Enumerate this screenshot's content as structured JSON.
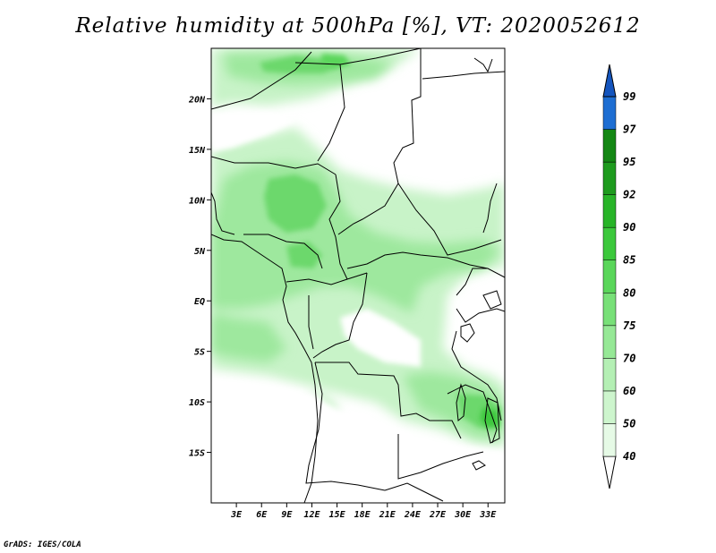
{
  "title": "Relative humidity at 500hPa [%], VT: 2020052612",
  "credit": "GrADS: IGES/COLA",
  "map": {
    "region": "Central Africa",
    "lon_range": [
      0,
      35
    ],
    "lat_range": [
      -20,
      25
    ],
    "lat_ticks": [
      {
        "value": 20,
        "label": "20N"
      },
      {
        "value": 15,
        "label": "15N"
      },
      {
        "value": 10,
        "label": "10N"
      },
      {
        "value": 5,
        "label": "5N"
      },
      {
        "value": 0,
        "label": "EQ"
      },
      {
        "value": -5,
        "label": "5S"
      },
      {
        "value": -10,
        "label": "10S"
      },
      {
        "value": -15,
        "label": "15S"
      }
    ],
    "lon_ticks": [
      {
        "value": 3,
        "label": "3E"
      },
      {
        "value": 6,
        "label": "6E"
      },
      {
        "value": 9,
        "label": "9E"
      },
      {
        "value": 12,
        "label": "12E"
      },
      {
        "value": 15,
        "label": "15E"
      },
      {
        "value": 18,
        "label": "18E"
      },
      {
        "value": 21,
        "label": "21E"
      },
      {
        "value": 24,
        "label": "24E"
      },
      {
        "value": 27,
        "label": "27E"
      },
      {
        "value": 30,
        "label": "30E"
      },
      {
        "value": 33,
        "label": "33E"
      }
    ]
  },
  "colorbar": {
    "levels": [
      {
        "label": "40",
        "color": "#e6fae6"
      },
      {
        "label": "50",
        "color": "#cdf5cd"
      },
      {
        "label": "60",
        "color": "#b4efb4"
      },
      {
        "label": "70",
        "color": "#96e896"
      },
      {
        "label": "75",
        "color": "#78e078"
      },
      {
        "label": "80",
        "color": "#5ad65a"
      },
      {
        "label": "85",
        "color": "#3cc83c"
      },
      {
        "label": "90",
        "color": "#28b428"
      },
      {
        "label": "92",
        "color": "#1e9b1e"
      },
      {
        "label": "95",
        "color": "#148714"
      },
      {
        "label": "97",
        "color": "#3c8ce6"
      },
      {
        "label": "99",
        "color": "#1e6ed2"
      }
    ],
    "top_color": "#1455be"
  }
}
